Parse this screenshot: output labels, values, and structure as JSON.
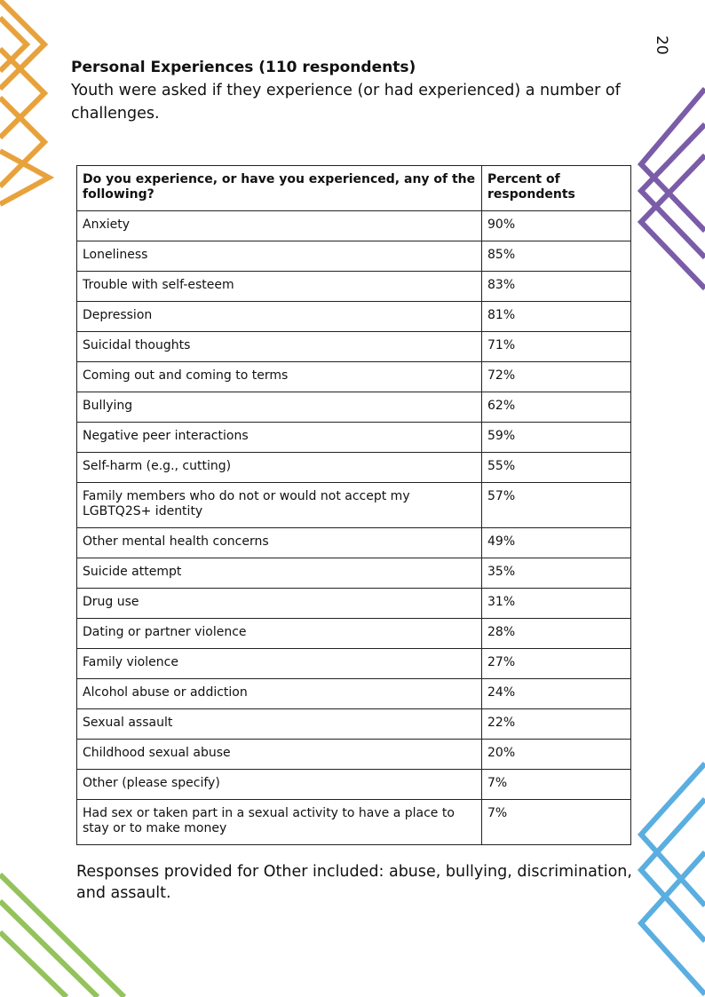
{
  "page_number": "20",
  "heading": "Personal Experiences (110 respondents)",
  "intro": "Youth were asked if they experience (or had experienced) a number of challenges.",
  "table": {
    "header": [
      "Do you experience, or have you experienced, any of the following?",
      "Percent of respondents"
    ],
    "rows": [
      [
        "Anxiety",
        "90%"
      ],
      [
        "Loneliness",
        "85%"
      ],
      [
        "Trouble with self-esteem",
        "83%"
      ],
      [
        "Depression",
        "81%"
      ],
      [
        "Suicidal thoughts",
        "71%"
      ],
      [
        "Coming out and coming to terms",
        "72%"
      ],
      [
        "Bullying",
        "62%"
      ],
      [
        "Negative peer interactions",
        "59%"
      ],
      [
        "Self-harm (e.g., cutting)",
        "55%"
      ],
      [
        "Family members who do not or would not accept my LGBTQ2S+ identity",
        "57%"
      ],
      [
        "Other mental health concerns",
        "49%"
      ],
      [
        "Suicide attempt",
        "35%"
      ],
      [
        "Drug use",
        "31%"
      ],
      [
        "Dating or partner violence",
        "28%"
      ],
      [
        "Family violence",
        "27%"
      ],
      [
        "Alcohol abuse or addiction",
        "24%"
      ],
      [
        "Sexual assault",
        "22%"
      ],
      [
        "Childhood sexual abuse",
        "20%"
      ],
      [
        "Other (please specify)",
        "7%"
      ],
      [
        "Had sex or taken part in a sexual activity to have a place to stay or to make money",
        "7%"
      ]
    ]
  },
  "footnote": "Responses provided for Other included: abuse, bullying, discrimination, and assault."
}
